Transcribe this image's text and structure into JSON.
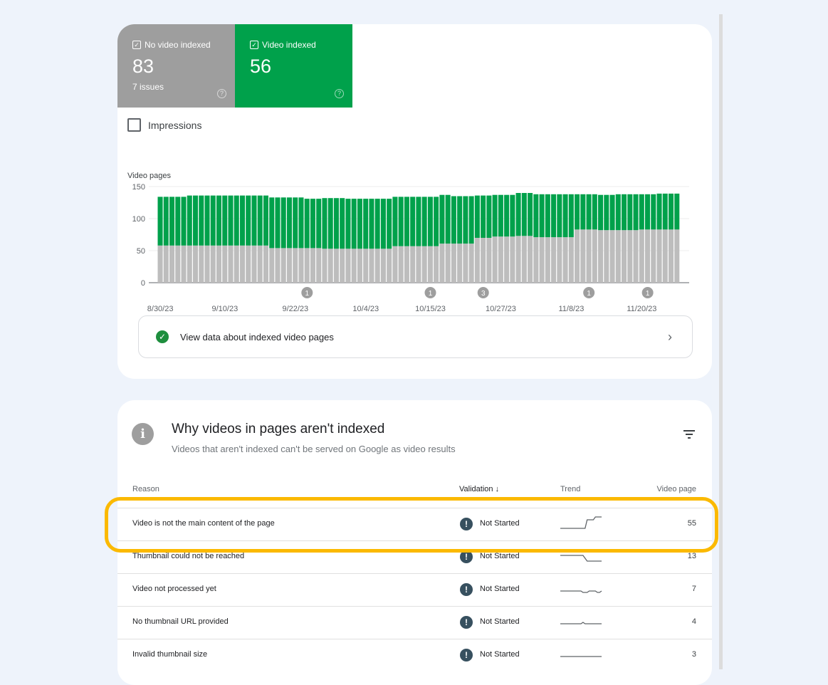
{
  "tiles": [
    {
      "label": "No video indexed",
      "value": "83",
      "sub": "7 issues",
      "color": "#9e9e9e"
    },
    {
      "label": "Video indexed",
      "value": "56",
      "sub": "",
      "color": "#00a14b"
    }
  ],
  "impressions_label": "Impressions",
  "view_data_label": "View data about indexed video pages",
  "chart_data": {
    "type": "bar",
    "stacked": true,
    "ylabel": "Video pages",
    "ylim": [
      0,
      150
    ],
    "yticks": [
      0,
      50,
      100,
      150
    ],
    "grid": true,
    "xtick_labels": [
      "8/30/23",
      "9/10/23",
      "9/22/23",
      "10/4/23",
      "10/15/23",
      "10/27/23",
      "11/8/23",
      "11/20/23"
    ],
    "start_date": "8/30/23",
    "series": [
      {
        "name": "No video indexed",
        "color": "#bdbdbd",
        "values": [
          58,
          58,
          58,
          58,
          58,
          58,
          58,
          58,
          58,
          58,
          58,
          58,
          58,
          58,
          58,
          58,
          58,
          58,
          58,
          54,
          54,
          54,
          54,
          54,
          54,
          54,
          54,
          54,
          53,
          53,
          53,
          53,
          53,
          53,
          53,
          53,
          53,
          53,
          53,
          53,
          57,
          57,
          57,
          57,
          57,
          57,
          57,
          57,
          61,
          61,
          61,
          61,
          61,
          61,
          70,
          70,
          70,
          72,
          72,
          72,
          72,
          73,
          73,
          73,
          71,
          71,
          71,
          71,
          71,
          71,
          71,
          83,
          83,
          83,
          83,
          82,
          82,
          82,
          82,
          82,
          82,
          82,
          83,
          83,
          83,
          83,
          83,
          83,
          83
        ]
      },
      {
        "name": "Video indexed",
        "color": "#00a14b",
        "values": [
          76,
          76,
          76,
          76,
          76,
          78,
          78,
          78,
          78,
          78,
          78,
          78,
          78,
          78,
          78,
          78,
          78,
          78,
          78,
          79,
          79,
          79,
          79,
          79,
          79,
          77,
          77,
          77,
          79,
          79,
          79,
          79,
          78,
          78,
          78,
          78,
          78,
          78,
          78,
          78,
          77,
          77,
          77,
          77,
          77,
          77,
          77,
          77,
          76,
          76,
          74,
          74,
          74,
          74,
          66,
          66,
          66,
          65,
          65,
          65,
          65,
          67,
          67,
          67,
          67,
          67,
          67,
          67,
          67,
          67,
          67,
          55,
          55,
          55,
          55,
          55,
          55,
          55,
          56,
          56,
          56,
          56,
          55,
          55,
          55,
          56,
          56,
          56,
          56
        ]
      }
    ],
    "annotations": [
      {
        "date": "9/24/23",
        "label": "1"
      },
      {
        "date": "10/15/23",
        "label": "1"
      },
      {
        "date": "10/24/23",
        "label": "3"
      },
      {
        "date": "11/11/23",
        "label": "1"
      },
      {
        "date": "11/21/23",
        "label": "1"
      }
    ]
  },
  "issues": {
    "title": "Why videos in pages aren't indexed",
    "subtitle": "Videos that aren't indexed can't be served on Google as video results",
    "columns": [
      "Reason",
      "Validation",
      "Trend",
      "Video page"
    ],
    "sort_arrow": "↓",
    "rows": [
      {
        "reason": "Video is not the main content of the page",
        "validation": "Not Started",
        "count": "55",
        "trend": [
          0,
          0,
          0,
          0,
          0,
          0,
          0,
          0,
          0,
          0,
          0,
          0,
          0,
          3,
          3,
          3,
          3,
          4,
          4,
          4,
          4
        ]
      },
      {
        "reason": "Thumbnail could not be reached",
        "validation": "Not Started",
        "count": "13",
        "trend": [
          2,
          2,
          2,
          2,
          2,
          2,
          2,
          2,
          2,
          2,
          2,
          2,
          1,
          0,
          0,
          0,
          0,
          0,
          0,
          0,
          0
        ]
      },
      {
        "reason": "Video not processed yet",
        "validation": "Not Started",
        "count": "7",
        "trend": [
          1,
          1,
          1,
          1,
          1,
          1,
          1,
          1,
          1,
          1,
          1,
          0.5,
          0.5,
          0.5,
          1,
          1,
          1,
          1,
          0.5,
          0.5,
          1
        ]
      },
      {
        "reason": "No thumbnail URL provided",
        "validation": "Not Started",
        "count": "4",
        "trend": [
          1,
          1,
          1,
          1,
          1,
          1,
          1,
          1,
          1,
          1,
          1,
          1.5,
          1,
          1,
          1,
          1,
          1,
          1,
          1,
          1,
          1
        ]
      },
      {
        "reason": "Invalid thumbnail size",
        "validation": "Not Started",
        "count": "3",
        "trend": [
          1,
          1,
          1,
          1,
          1,
          1,
          1,
          1,
          1,
          1,
          1,
          1,
          1,
          1,
          1,
          1,
          1,
          1,
          1,
          1,
          1
        ]
      }
    ],
    "highlight_color": "#fbb900"
  }
}
